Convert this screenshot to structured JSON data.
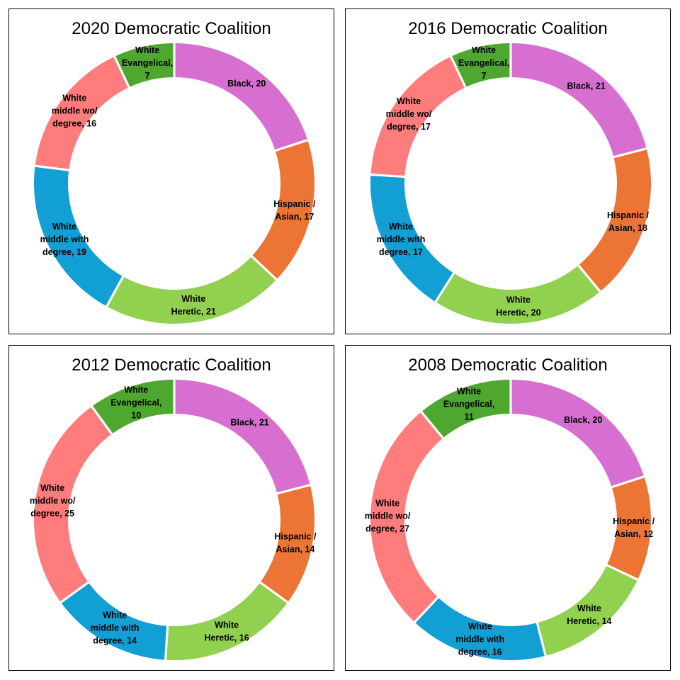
{
  "chart_data": [
    {
      "type": "pie",
      "title": "2020 Democratic Coalition",
      "categories": [
        "Black",
        "Hispanic / Asian",
        "White Heretic",
        "White middle with degree",
        "White middle wo/ degree",
        "White Evangelical"
      ],
      "values": [
        20,
        17,
        21,
        19,
        16,
        7
      ],
      "label_lines": [
        [
          "Black, 20"
        ],
        [
          "Hispanic /",
          "Asian, 17"
        ],
        [
          "White",
          "Heretic, 21"
        ],
        [
          "White",
          "middle with",
          "degree, 19"
        ],
        [
          "White",
          "middle wo/",
          "degree, 16"
        ],
        [
          "White",
          "Evangelical,",
          "7"
        ]
      ],
      "colors": [
        "#d66fd0",
        "#ec7434",
        "#92d050",
        "#129fd4",
        "#ff7c7c",
        "#4ea72e"
      ],
      "legend": "none"
    },
    {
      "type": "pie",
      "title": "2016 Democratic Coalition",
      "categories": [
        "Black",
        "Hispanic / Asian",
        "White Heretic",
        "White middle with degree",
        "White middle wo/ degree",
        "White Evangelical"
      ],
      "values": [
        21,
        18,
        20,
        17,
        17,
        7
      ],
      "label_lines": [
        [
          "Black, 21"
        ],
        [
          "Hispanic /",
          "Asian, 18"
        ],
        [
          "White",
          "Heretic, 20"
        ],
        [
          "White",
          "middle with",
          "degree, 17"
        ],
        [
          "White",
          "middle wo/",
          "degree, 17"
        ],
        [
          "White",
          "Evangelical,",
          "7"
        ]
      ],
      "colors": [
        "#d66fd0",
        "#ec7434",
        "#92d050",
        "#129fd4",
        "#ff7c7c",
        "#4ea72e"
      ],
      "legend": "none"
    },
    {
      "type": "pie",
      "title": "2012 Democratic Coalition",
      "categories": [
        "Black",
        "Hispanic / Asian",
        "White Heretic",
        "White middle with degree",
        "White middle wo/ degree",
        "White Evangelical"
      ],
      "values": [
        21,
        14,
        16,
        14,
        25,
        10
      ],
      "label_lines": [
        [
          "Black, 21"
        ],
        [
          "Hispanic /",
          "Asian, 14"
        ],
        [
          "White",
          "Heretic, 16"
        ],
        [
          "White",
          "middle with",
          "degree, 14"
        ],
        [
          "White",
          "middle wo/",
          "degree, 25"
        ],
        [
          "White",
          "Evangelical,",
          "10"
        ]
      ],
      "colors": [
        "#d66fd0",
        "#ec7434",
        "#92d050",
        "#129fd4",
        "#ff7c7c",
        "#4ea72e"
      ],
      "legend": "none"
    },
    {
      "type": "pie",
      "title": "2008 Democratic Coalition",
      "categories": [
        "Black",
        "Hispanic / Asian",
        "White Heretic",
        "White middle with degree",
        "White middle wo/ degree",
        "White Evangelical"
      ],
      "values": [
        20,
        12,
        14,
        16,
        27,
        11
      ],
      "label_lines": [
        [
          "Black, 20"
        ],
        [
          "Hispanic /",
          "Asian, 12"
        ],
        [
          "White",
          "Heretic, 14"
        ],
        [
          "White",
          "middle with",
          "degree, 16"
        ],
        [
          "White",
          "middle wo/",
          "degree, 27"
        ],
        [
          "White",
          "Evangelical,",
          "11"
        ]
      ],
      "colors": [
        "#d66fd0",
        "#ec7434",
        "#92d050",
        "#129fd4",
        "#ff7c7c",
        "#4ea72e"
      ],
      "legend": "none"
    }
  ]
}
